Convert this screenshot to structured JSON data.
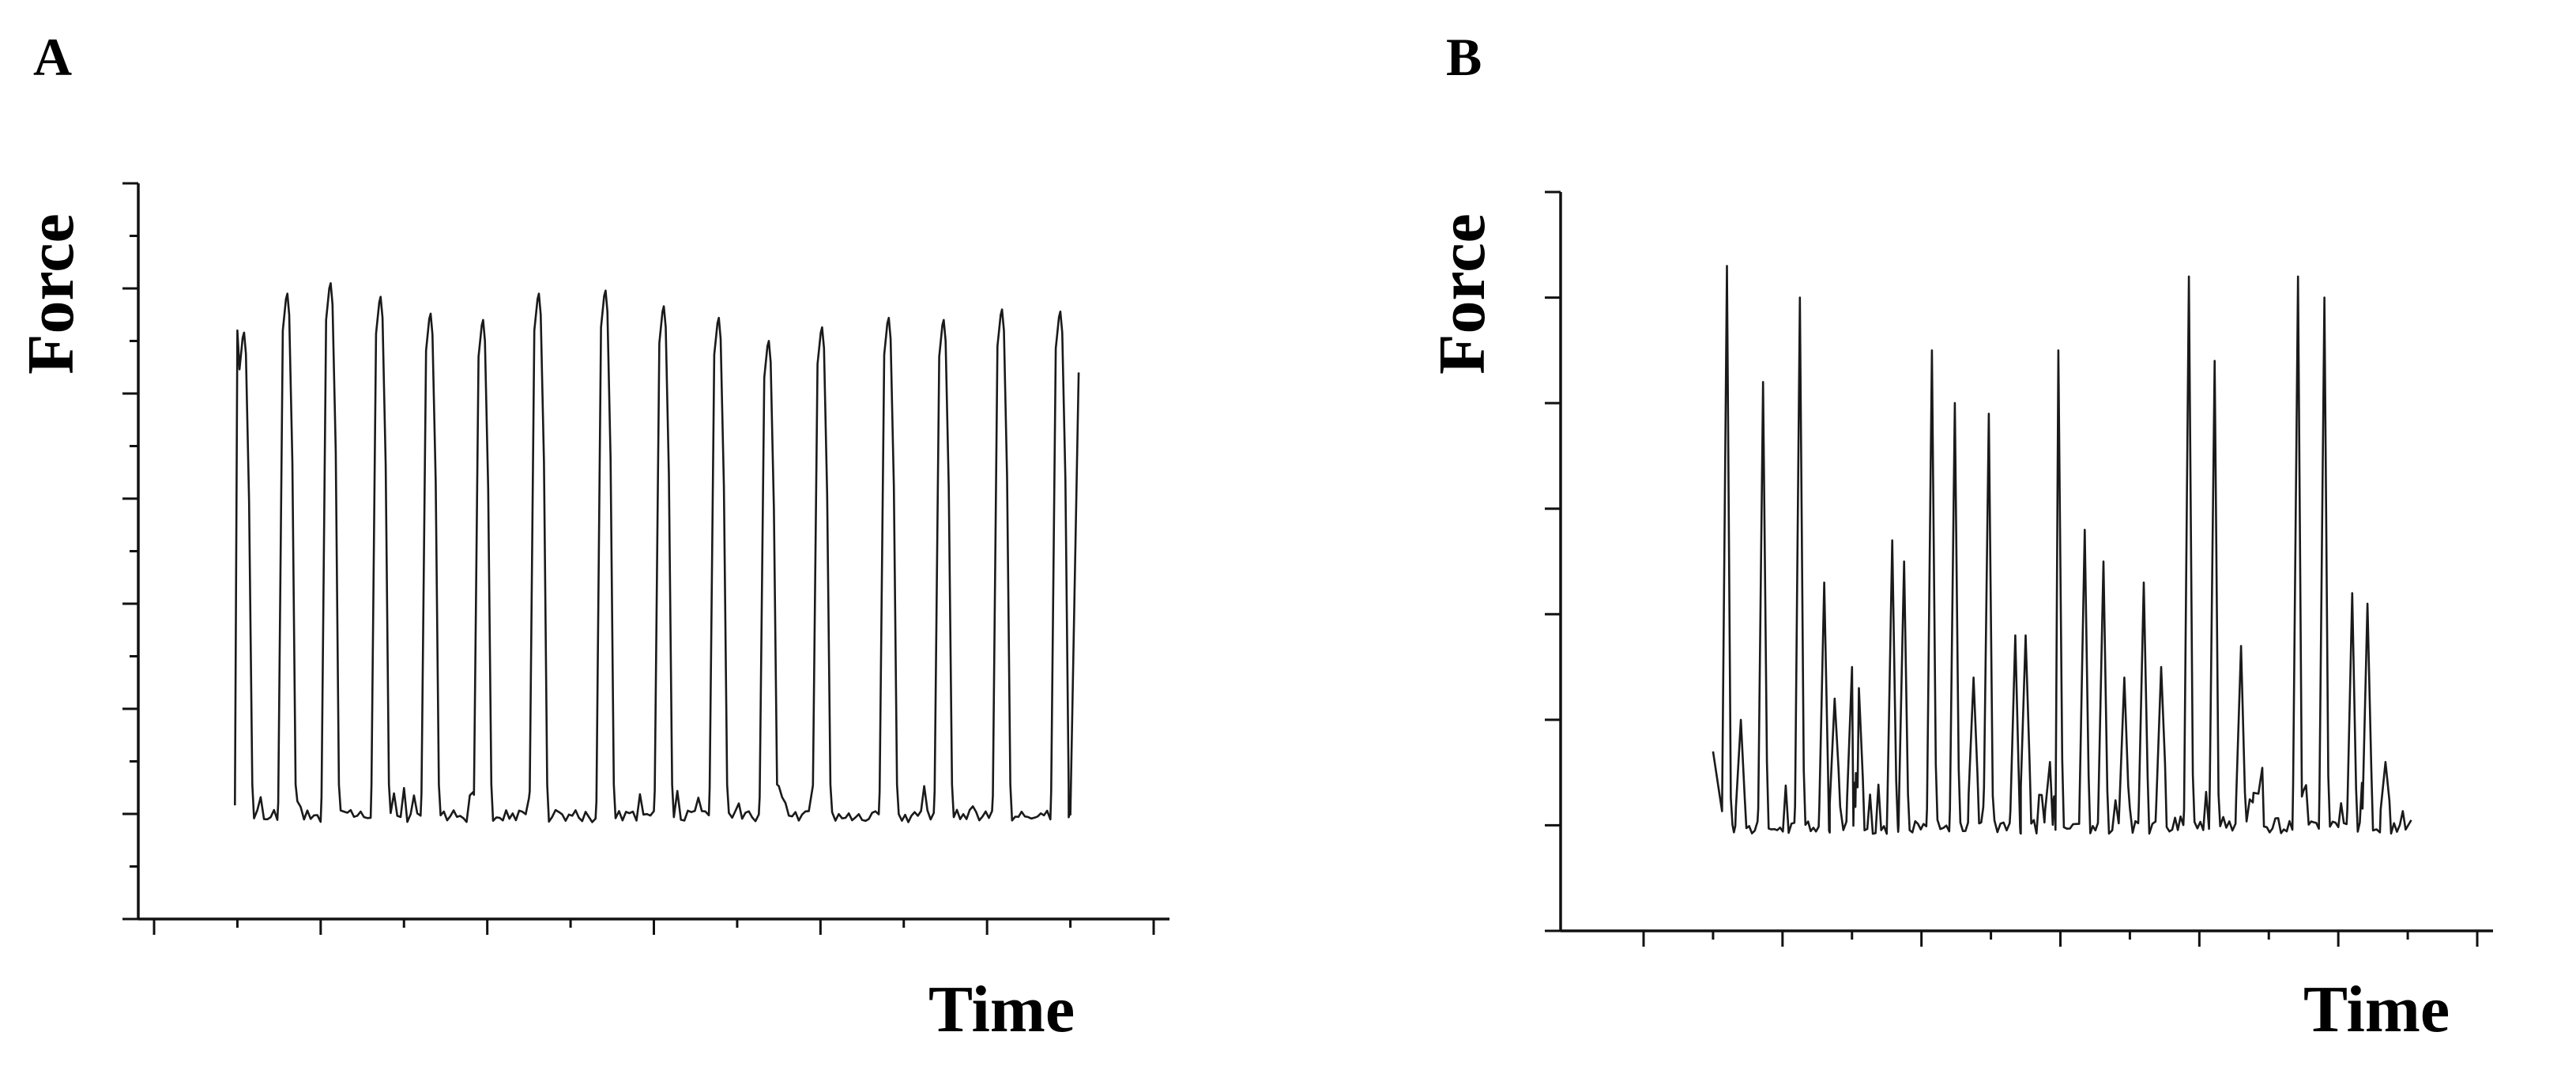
{
  "chart_data": [
    {
      "type": "line",
      "panel_label": "A",
      "xlabel": "Time",
      "ylabel": "Force",
      "grid": false,
      "xlim": [
        0,
        12
      ],
      "ylim": [
        0,
        7
      ],
      "x_major_ticks": [
        0,
        2,
        4,
        6,
        8,
        10,
        12
      ],
      "x_minor_ticks": [
        1,
        3,
        5,
        7,
        9,
        11
      ],
      "y_major_ticks": [
        0,
        1,
        2,
        3,
        4,
        5,
        6,
        7
      ],
      "y_minor_ticks": [
        0.5,
        1.5,
        2.5,
        3.5,
        4.5,
        5.5,
        6.5
      ],
      "series": [
        {
          "baseline": 0.98,
          "start": [
            1.0,
            5.6
          ],
          "end": [
            11.1,
            5.2
          ],
          "peaks": [
            {
              "x": 1.08,
              "y": 5.58
            },
            {
              "x": 1.6,
              "y": 5.95
            },
            {
              "x": 2.12,
              "y": 6.05
            },
            {
              "x": 2.72,
              "y": 5.92
            },
            {
              "x": 3.32,
              "y": 5.76
            },
            {
              "x": 3.95,
              "y": 5.7
            },
            {
              "x": 4.62,
              "y": 5.95
            },
            {
              "x": 5.42,
              "y": 5.98
            },
            {
              "x": 6.12,
              "y": 5.83
            },
            {
              "x": 6.78,
              "y": 5.72
            },
            {
              "x": 7.38,
              "y": 5.5
            },
            {
              "x": 8.02,
              "y": 5.63
            },
            {
              "x": 8.82,
              "y": 5.72
            },
            {
              "x": 9.48,
              "y": 5.7
            },
            {
              "x": 10.18,
              "y": 5.8
            },
            {
              "x": 10.88,
              "y": 5.78
            }
          ]
        }
      ]
    },
    {
      "type": "line",
      "panel_label": "B",
      "xlabel": "Time",
      "ylabel": "Force",
      "grid": false,
      "xlim": [
        0,
        12
      ],
      "ylim": [
        0,
        7
      ],
      "x_major_ticks": [
        0,
        2,
        4,
        6,
        8,
        10,
        12
      ],
      "x_minor_ticks": [
        1,
        3,
        5,
        7,
        9,
        11
      ],
      "y_major_ticks": [
        0,
        1,
        2,
        3,
        4,
        5,
        6,
        7
      ],
      "y_minor_ticks": [],
      "series": [
        {
          "baseline": 0.98,
          "start": [
            1.0,
            1.7
          ],
          "end": [
            11.05,
            1.05
          ],
          "peaks": [
            {
              "x": 1.2,
              "y": 6.3
            },
            {
              "x": 1.4,
              "y": 2.0
            },
            {
              "x": 1.72,
              "y": 5.2
            },
            {
              "x": 2.25,
              "y": 6.0
            },
            {
              "x": 2.6,
              "y": 3.3
            },
            {
              "x": 2.75,
              "y": 2.2
            },
            {
              "x": 3.0,
              "y": 2.5
            },
            {
              "x": 3.1,
              "y": 2.3
            },
            {
              "x": 3.58,
              "y": 3.7
            },
            {
              "x": 3.75,
              "y": 3.5
            },
            {
              "x": 4.15,
              "y": 5.5
            },
            {
              "x": 4.48,
              "y": 5.0
            },
            {
              "x": 4.75,
              "y": 2.4
            },
            {
              "x": 4.97,
              "y": 4.9
            },
            {
              "x": 5.35,
              "y": 2.8
            },
            {
              "x": 5.5,
              "y": 2.8
            },
            {
              "x": 5.85,
              "y": 1.6
            },
            {
              "x": 5.97,
              "y": 5.5
            },
            {
              "x": 6.35,
              "y": 3.8
            },
            {
              "x": 6.62,
              "y": 3.5
            },
            {
              "x": 6.92,
              "y": 2.4
            },
            {
              "x": 7.2,
              "y": 3.3
            },
            {
              "x": 7.45,
              "y": 2.5
            },
            {
              "x": 7.85,
              "y": 6.2
            },
            {
              "x": 8.22,
              "y": 5.4
            },
            {
              "x": 8.6,
              "y": 2.7
            },
            {
              "x": 8.85,
              "y": 1.3
            },
            {
              "x": 9.42,
              "y": 6.2
            },
            {
              "x": 9.8,
              "y": 6.0
            },
            {
              "x": 10.2,
              "y": 3.2
            },
            {
              "x": 10.42,
              "y": 3.1
            },
            {
              "x": 10.68,
              "y": 1.6
            }
          ]
        }
      ]
    }
  ]
}
